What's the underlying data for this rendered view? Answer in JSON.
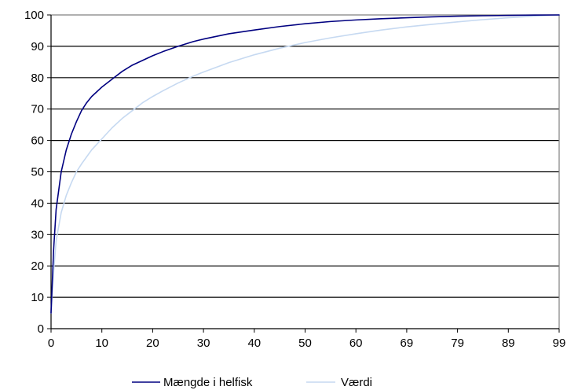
{
  "chart_data": {
    "type": "line",
    "title": "",
    "xlabel": "",
    "ylabel": "",
    "x_tick_labels": [
      "0",
      "10",
      "20",
      "30",
      "40",
      "50",
      "60",
      "69",
      "79",
      "89",
      "99"
    ],
    "x_tick_index": [
      0,
      10,
      20,
      30,
      40,
      50,
      60,
      70,
      80,
      90,
      100
    ],
    "y_ticks": [
      0,
      10,
      20,
      30,
      40,
      50,
      60,
      70,
      80,
      90,
      100
    ],
    "xlim": [
      0,
      100
    ],
    "ylim": [
      0,
      100
    ],
    "grid": "horizontal",
    "legend_position": "bottom",
    "series": [
      {
        "name": "Mængde i helfisk",
        "color": "#000080",
        "x": [
          0,
          0.5,
          1,
          2,
          3,
          4,
          5,
          6,
          7,
          8,
          9,
          10,
          12,
          14,
          16,
          18,
          20,
          22,
          25,
          28,
          30,
          35,
          40,
          45,
          50,
          55,
          60,
          65,
          70,
          75,
          80,
          85,
          90,
          95,
          100
        ],
        "y": [
          5,
          25,
          38,
          50,
          57,
          62,
          66,
          69.5,
          72,
          74,
          75.5,
          77,
          79.5,
          82,
          84,
          85.5,
          87,
          88.3,
          90,
          91.5,
          92.3,
          94,
          95.2,
          96.3,
          97.2,
          97.9,
          98.4,
          98.8,
          99.1,
          99.4,
          99.6,
          99.75,
          99.85,
          99.95,
          100
        ]
      },
      {
        "name": "Værdi",
        "color": "#c6d9f1",
        "x": [
          0,
          0.5,
          1,
          2,
          3,
          4,
          5,
          6,
          8,
          10,
          12,
          14,
          16,
          18,
          20,
          22,
          25,
          28,
          30,
          35,
          40,
          45,
          50,
          55,
          60,
          65,
          70,
          75,
          80,
          85,
          90,
          95,
          100
        ],
        "y": [
          5,
          18,
          28,
          37,
          42.5,
          46.5,
          50,
          52.5,
          57,
          60.5,
          64,
          67,
          69.5,
          72,
          74,
          75.8,
          78.3,
          80.5,
          81.8,
          84.8,
          87.3,
          89.4,
          91.2,
          92.7,
          94,
          95.2,
          96.2,
          97,
          97.8,
          98.5,
          99.1,
          99.6,
          100
        ]
      }
    ]
  }
}
